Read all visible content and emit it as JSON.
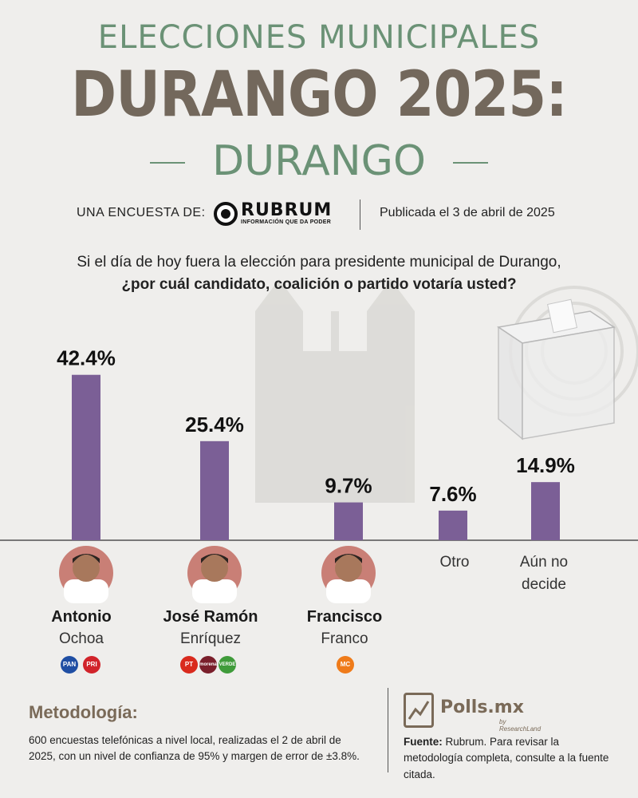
{
  "header": {
    "line1": "ELECCIONES MUNICIPALES",
    "line2": "DURANGO 2025:",
    "line3": "DURANGO"
  },
  "survey": {
    "by_label": "UNA ENCUESTA DE:",
    "pollster_name": "RUBRUM",
    "pollster_tagline": "INFORMACIÓN QUE DA PODER",
    "published": "Publicada el 3 de abril de 2025"
  },
  "question": {
    "line1": "Si el día de hoy fuera la elección para presidente municipal de Durango,",
    "line2": "¿por cuál candidato, coalición o partido votaría usted?"
  },
  "chart_data": {
    "type": "bar",
    "categories": [
      "Antonio Ochoa",
      "José Ramón Enríquez",
      "Francisco Franco",
      "Otro",
      "Aún no decide"
    ],
    "values": [
      42.4,
      25.4,
      9.7,
      7.6,
      14.9
    ],
    "value_labels": [
      "42.4%",
      "25.4%",
      "9.7%",
      "7.6%",
      "14.9%"
    ],
    "ylim": [
      0,
      45
    ],
    "bar_color": "#7b5f96",
    "grid": false,
    "legend": "none"
  },
  "candidates": [
    {
      "first": "Antonio",
      "last": "Ochoa",
      "parties": [
        "PAN",
        "PRI"
      ]
    },
    {
      "first": "José Ramón",
      "last": "Enríquez",
      "parties": [
        "PT",
        "morena",
        "VERDE"
      ]
    },
    {
      "first": "Francisco",
      "last": "Franco",
      "parties": [
        "MC"
      ]
    }
  ],
  "other_labels": {
    "otro": "Otro",
    "undecided_1": "Aún no",
    "undecided_2": "decide"
  },
  "methodology": {
    "title": "Metodología:",
    "text": "600 encuestas telefónicas a nivel local, realizadas el 2 de abril de 2025, con un nivel de confianza de 95% y margen de error de ±3.8%."
  },
  "footer": {
    "brand": "Polls.mx",
    "brand_sub": "by ResearchLand",
    "source_label": "Fuente:",
    "source_text": " Rubrum. Para revisar la metodología completa, consulte a la fuente citada."
  },
  "colors": {
    "title_green": "#6b9276",
    "title_brown": "#73685c",
    "bar": "#7b5f96",
    "photo_bg": "#c97f76"
  }
}
